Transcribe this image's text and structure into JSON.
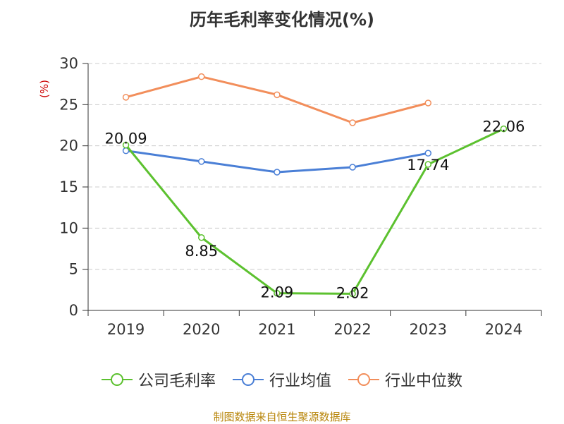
{
  "title": "历年毛利率变化情况(%)",
  "source": "制图数据来自恒生聚源数据库",
  "chart_data": {
    "type": "line",
    "title": "历年毛利率变化情况(%)",
    "ylabel": "(%)",
    "xlabel": "",
    "ylim": [
      0,
      30
    ],
    "yticks": [
      0,
      5,
      10,
      15,
      20,
      25,
      30
    ],
    "categories": [
      "2019",
      "2020",
      "2021",
      "2022",
      "2023",
      "2024"
    ],
    "grid": true,
    "legend_position": "bottom",
    "series": [
      {
        "name": "公司毛利率",
        "color": "#5cc12f",
        "values": [
          20.09,
          8.85,
          2.09,
          2.02,
          17.74,
          22.06
        ],
        "labels": [
          "20.09",
          "8.85",
          "2.09",
          "2.02",
          "17.74",
          "22.06"
        ]
      },
      {
        "name": "行业均值",
        "color": "#4a7fd6",
        "values": [
          19.4,
          18.1,
          16.8,
          17.4,
          19.1,
          null
        ]
      },
      {
        "name": "行业中位数",
        "color": "#f28e5b",
        "values": [
          25.9,
          28.4,
          26.2,
          22.8,
          25.2,
          null
        ]
      }
    ],
    "axis_color": "#333333",
    "ylabel_color": "#cc0000",
    "grid_color": "#cccccc"
  }
}
